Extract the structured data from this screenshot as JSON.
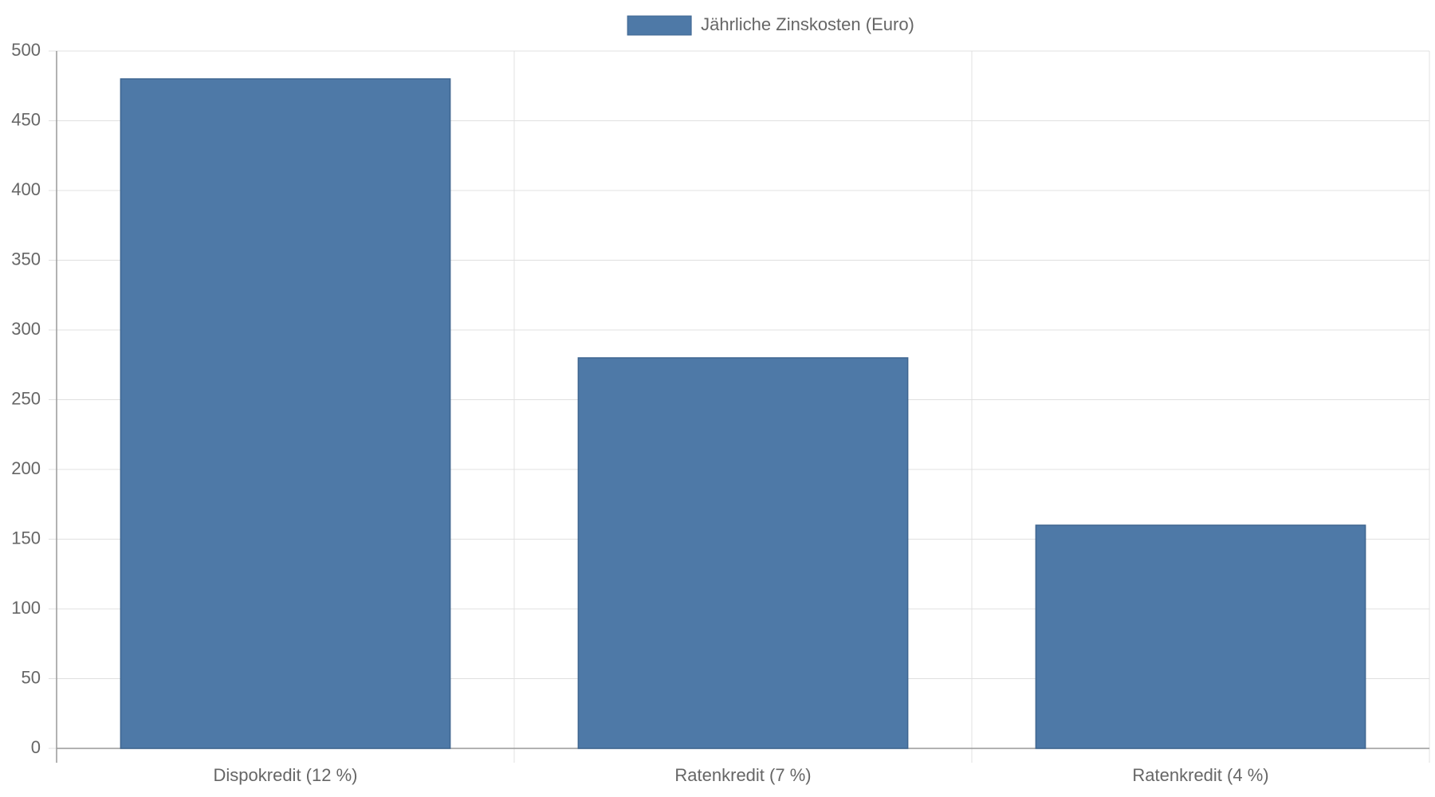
{
  "chart_data": {
    "type": "bar",
    "categories": [
      "Dispokredit (12 %)",
      "Ratenkredit (7 %)",
      "Ratenkredit (4 %)"
    ],
    "series": [
      {
        "name": "Jährliche Zinskosten (Euro)",
        "color": "#4e79a7",
        "values": [
          480,
          280,
          160
        ]
      }
    ],
    "ylim": [
      0,
      500
    ],
    "yticks": [
      0,
      50,
      100,
      150,
      200,
      250,
      300,
      350,
      400,
      450,
      500
    ],
    "grid": true,
    "legend": "top"
  }
}
